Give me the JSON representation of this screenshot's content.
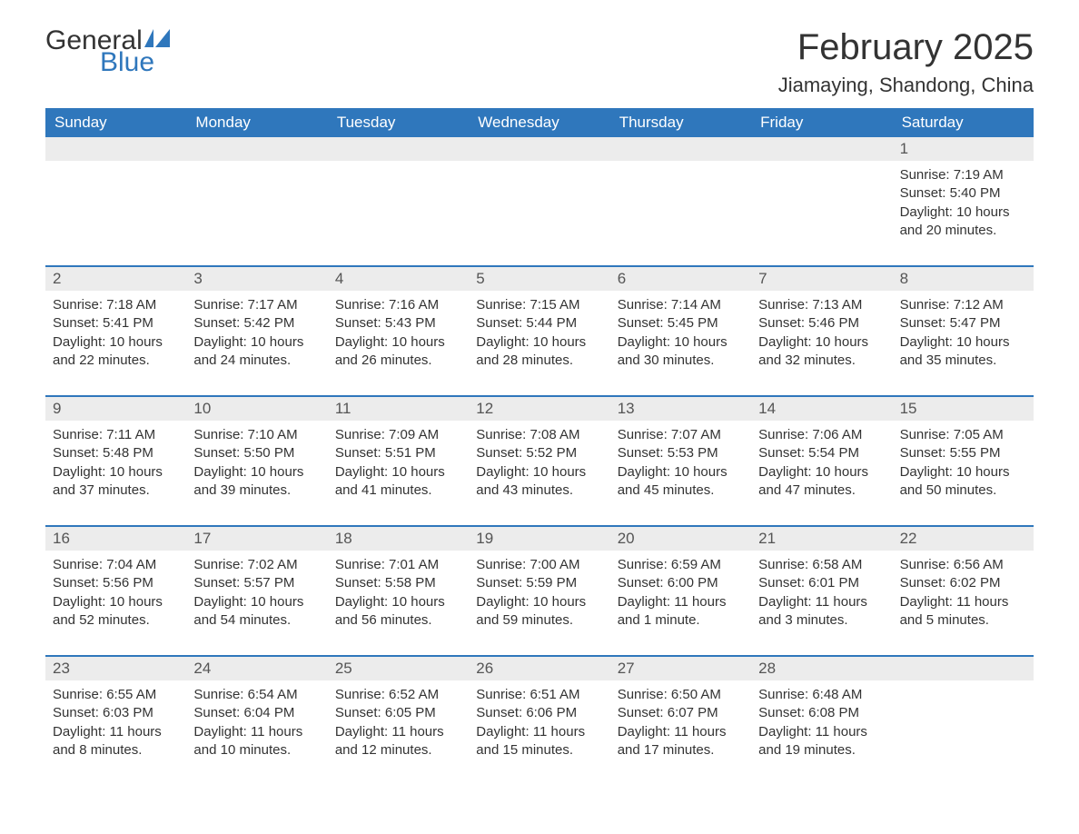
{
  "logo": {
    "text1": "General",
    "text2": "Blue"
  },
  "title": "February 2025",
  "location": "Jiamaying, Shandong, China",
  "colors": {
    "header_bg": "#2f77bc",
    "header_text": "#ffffff",
    "row_border": "#2f77bc",
    "daynum_bg": "#ececec",
    "text": "#333333"
  },
  "weekdays": [
    "Sunday",
    "Monday",
    "Tuesday",
    "Wednesday",
    "Thursday",
    "Friday",
    "Saturday"
  ],
  "weeks": [
    [
      {
        "num": "",
        "lines": []
      },
      {
        "num": "",
        "lines": []
      },
      {
        "num": "",
        "lines": []
      },
      {
        "num": "",
        "lines": []
      },
      {
        "num": "",
        "lines": []
      },
      {
        "num": "",
        "lines": []
      },
      {
        "num": "1",
        "lines": [
          "Sunrise: 7:19 AM",
          "Sunset: 5:40 PM",
          "Daylight: 10 hours and 20 minutes."
        ]
      }
    ],
    [
      {
        "num": "2",
        "lines": [
          "Sunrise: 7:18 AM",
          "Sunset: 5:41 PM",
          "Daylight: 10 hours and 22 minutes."
        ]
      },
      {
        "num": "3",
        "lines": [
          "Sunrise: 7:17 AM",
          "Sunset: 5:42 PM",
          "Daylight: 10 hours and 24 minutes."
        ]
      },
      {
        "num": "4",
        "lines": [
          "Sunrise: 7:16 AM",
          "Sunset: 5:43 PM",
          "Daylight: 10 hours and 26 minutes."
        ]
      },
      {
        "num": "5",
        "lines": [
          "Sunrise: 7:15 AM",
          "Sunset: 5:44 PM",
          "Daylight: 10 hours and 28 minutes."
        ]
      },
      {
        "num": "6",
        "lines": [
          "Sunrise: 7:14 AM",
          "Sunset: 5:45 PM",
          "Daylight: 10 hours and 30 minutes."
        ]
      },
      {
        "num": "7",
        "lines": [
          "Sunrise: 7:13 AM",
          "Sunset: 5:46 PM",
          "Daylight: 10 hours and 32 minutes."
        ]
      },
      {
        "num": "8",
        "lines": [
          "Sunrise: 7:12 AM",
          "Sunset: 5:47 PM",
          "Daylight: 10 hours and 35 minutes."
        ]
      }
    ],
    [
      {
        "num": "9",
        "lines": [
          "Sunrise: 7:11 AM",
          "Sunset: 5:48 PM",
          "Daylight: 10 hours and 37 minutes."
        ]
      },
      {
        "num": "10",
        "lines": [
          "Sunrise: 7:10 AM",
          "Sunset: 5:50 PM",
          "Daylight: 10 hours and 39 minutes."
        ]
      },
      {
        "num": "11",
        "lines": [
          "Sunrise: 7:09 AM",
          "Sunset: 5:51 PM",
          "Daylight: 10 hours and 41 minutes."
        ]
      },
      {
        "num": "12",
        "lines": [
          "Sunrise: 7:08 AM",
          "Sunset: 5:52 PM",
          "Daylight: 10 hours and 43 minutes."
        ]
      },
      {
        "num": "13",
        "lines": [
          "Sunrise: 7:07 AM",
          "Sunset: 5:53 PM",
          "Daylight: 10 hours and 45 minutes."
        ]
      },
      {
        "num": "14",
        "lines": [
          "Sunrise: 7:06 AM",
          "Sunset: 5:54 PM",
          "Daylight: 10 hours and 47 minutes."
        ]
      },
      {
        "num": "15",
        "lines": [
          "Sunrise: 7:05 AM",
          "Sunset: 5:55 PM",
          "Daylight: 10 hours and 50 minutes."
        ]
      }
    ],
    [
      {
        "num": "16",
        "lines": [
          "Sunrise: 7:04 AM",
          "Sunset: 5:56 PM",
          "Daylight: 10 hours and 52 minutes."
        ]
      },
      {
        "num": "17",
        "lines": [
          "Sunrise: 7:02 AM",
          "Sunset: 5:57 PM",
          "Daylight: 10 hours and 54 minutes."
        ]
      },
      {
        "num": "18",
        "lines": [
          "Sunrise: 7:01 AM",
          "Sunset: 5:58 PM",
          "Daylight: 10 hours and 56 minutes."
        ]
      },
      {
        "num": "19",
        "lines": [
          "Sunrise: 7:00 AM",
          "Sunset: 5:59 PM",
          "Daylight: 10 hours and 59 minutes."
        ]
      },
      {
        "num": "20",
        "lines": [
          "Sunrise: 6:59 AM",
          "Sunset: 6:00 PM",
          "Daylight: 11 hours and 1 minute."
        ]
      },
      {
        "num": "21",
        "lines": [
          "Sunrise: 6:58 AM",
          "Sunset: 6:01 PM",
          "Daylight: 11 hours and 3 minutes."
        ]
      },
      {
        "num": "22",
        "lines": [
          "Sunrise: 6:56 AM",
          "Sunset: 6:02 PM",
          "Daylight: 11 hours and 5 minutes."
        ]
      }
    ],
    [
      {
        "num": "23",
        "lines": [
          "Sunrise: 6:55 AM",
          "Sunset: 6:03 PM",
          "Daylight: 11 hours and 8 minutes."
        ]
      },
      {
        "num": "24",
        "lines": [
          "Sunrise: 6:54 AM",
          "Sunset: 6:04 PM",
          "Daylight: 11 hours and 10 minutes."
        ]
      },
      {
        "num": "25",
        "lines": [
          "Sunrise: 6:52 AM",
          "Sunset: 6:05 PM",
          "Daylight: 11 hours and 12 minutes."
        ]
      },
      {
        "num": "26",
        "lines": [
          "Sunrise: 6:51 AM",
          "Sunset: 6:06 PM",
          "Daylight: 11 hours and 15 minutes."
        ]
      },
      {
        "num": "27",
        "lines": [
          "Sunrise: 6:50 AM",
          "Sunset: 6:07 PM",
          "Daylight: 11 hours and 17 minutes."
        ]
      },
      {
        "num": "28",
        "lines": [
          "Sunrise: 6:48 AM",
          "Sunset: 6:08 PM",
          "Daylight: 11 hours and 19 minutes."
        ]
      },
      {
        "num": "",
        "lines": []
      }
    ]
  ]
}
